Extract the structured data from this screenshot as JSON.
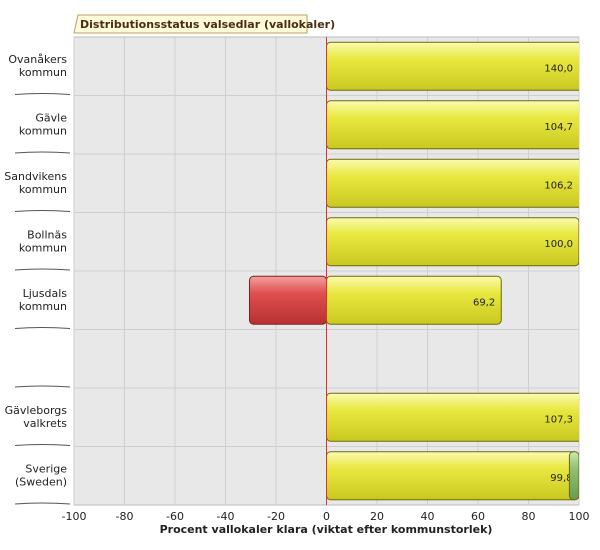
{
  "chart_data": {
    "type": "hbar",
    "title": "Distributionsstatus valsedlar (vallokaler)",
    "x_label": "Procent vallokaler klara (viktat efter kommunstorlek)",
    "categories": [
      "Ovanåkers\nkommun",
      "Gävle\nkommun",
      "Sandvikens\nkommun",
      "Bollnäs\nkommun",
      "Ljusdals\nkommun",
      null,
      "Gävleborgs\nvalkrets",
      "Sverige\n(Sweden)"
    ],
    "series": [
      {
        "color": "#e6e63a",
        "values": [
          140.0,
          104.7,
          106.2,
          100.0,
          69.2,
          null,
          107.3,
          99.8
        ],
        "value_labels": [
          "140,0",
          "104,7",
          "106,2",
          "100,0",
          "69,2",
          null,
          "107,3",
          "99,8"
        ]
      },
      {
        "color": "#d94848",
        "values": [
          null,
          null,
          null,
          null,
          -30.5,
          null,
          null,
          null
        ]
      },
      {
        "color": "#8fbf6a",
        "values": [
          null,
          null,
          null,
          null,
          null,
          null,
          null,
          3.8
        ]
      }
    ],
    "xlim": [
      -100,
      100
    ],
    "xticks": [
      -100,
      -80,
      -60,
      -40,
      -20,
      0,
      20,
      40,
      60,
      80,
      100
    ],
    "grid": true
  }
}
